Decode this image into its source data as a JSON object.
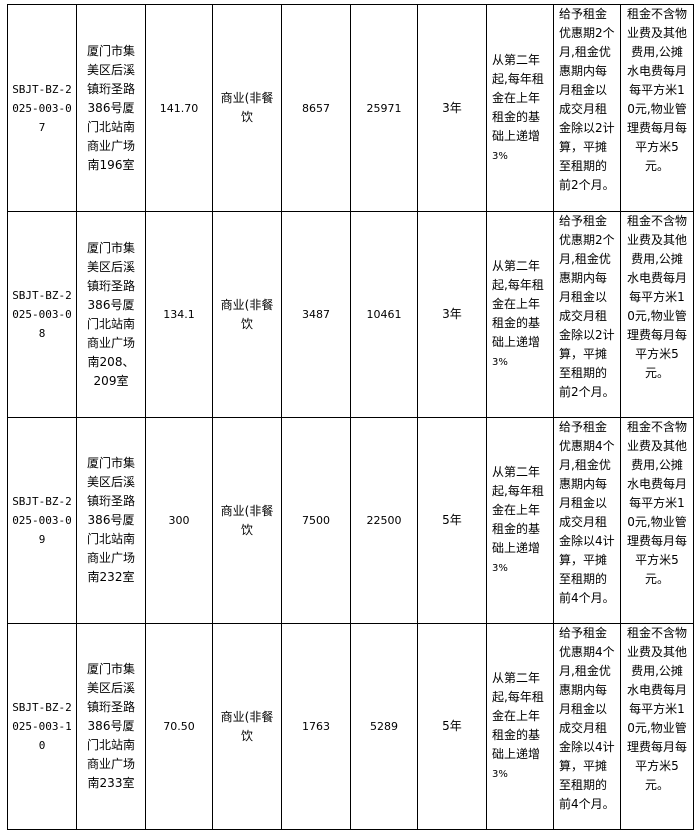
{
  "rows": [
    {
      "code": "SBJT-BZ-2025-003-07",
      "address": "厦门市集美区后溪镇珩圣路386号厦门北站南商业广场南196室",
      "area": "141.70",
      "use": "商业(非餐饮",
      "monthly_rent": "8657",
      "deposit": "25971",
      "term": "3年",
      "increase": "从第二年起,每年租金在上年租金的基础上递增",
      "increase_pct": "3%",
      "preferential": "给予租金优惠期2个月,租金优惠期内每月租金以成交月租金除以2计算，平摊至租期的前2个月。",
      "fees": "租金不含物业费及其他费用,公摊水电费每月每平方米10元,物业管理费每月每平方米5元。"
    },
    {
      "code": "SBJT-BZ-2025-003-08",
      "address": "厦门市集美区后溪镇珩圣路386号厦门北站南商业广场南208、209室",
      "area": "134.1",
      "use": "商业(非餐饮",
      "monthly_rent": "3487",
      "deposit": "10461",
      "term": "3年",
      "increase": "从第二年起,每年租金在上年租金的基础上递增",
      "increase_pct": "3%",
      "preferential": "给予租金优惠期2个月,租金优惠期内每月租金以成交月租金除以2计算，平摊至租期的前2个月。",
      "fees": "租金不含物业费及其他费用,公摊水电费每月每平方米10元,物业管理费每月每平方米5元。"
    },
    {
      "code": "SBJT-BZ-2025-003-09",
      "address": "厦门市集美区后溪镇珩圣路386号厦门北站南商业广场南232室",
      "area": "300",
      "use": "商业(非餐饮",
      "monthly_rent": "7500",
      "deposit": "22500",
      "term": "5年",
      "increase": "从第二年起,每年租金在上年租金的基础上递增",
      "increase_pct": "3%",
      "preferential": "给予租金优惠期4个月,租金优惠期内每月租金以成交月租金除以4计算，平摊至租期的前4个月。",
      "fees": "租金不含物业费及其他费用,公摊水电费每月每平方米10元,物业管理费每月每平方米5元。"
    },
    {
      "code": "SBJT-BZ-2025-003-10",
      "address": "厦门市集美区后溪镇珩圣路386号厦门北站南商业广场南233室",
      "area": "70.50",
      "use": "商业(非餐饮",
      "monthly_rent": "1763",
      "deposit": "5289",
      "term": "5年",
      "increase": "从第二年起,每年租金在上年租金的基础上递增",
      "increase_pct": "3%",
      "preferential": "给予租金优惠期4个月,租金优惠期内每月租金以成交月租金除以4计算，平摊至租期的前4个月。",
      "fees": "租金不含物业费及其他费用,公摊水电费每月每平方米10元,物业管理费每月每平方米5元。"
    }
  ]
}
